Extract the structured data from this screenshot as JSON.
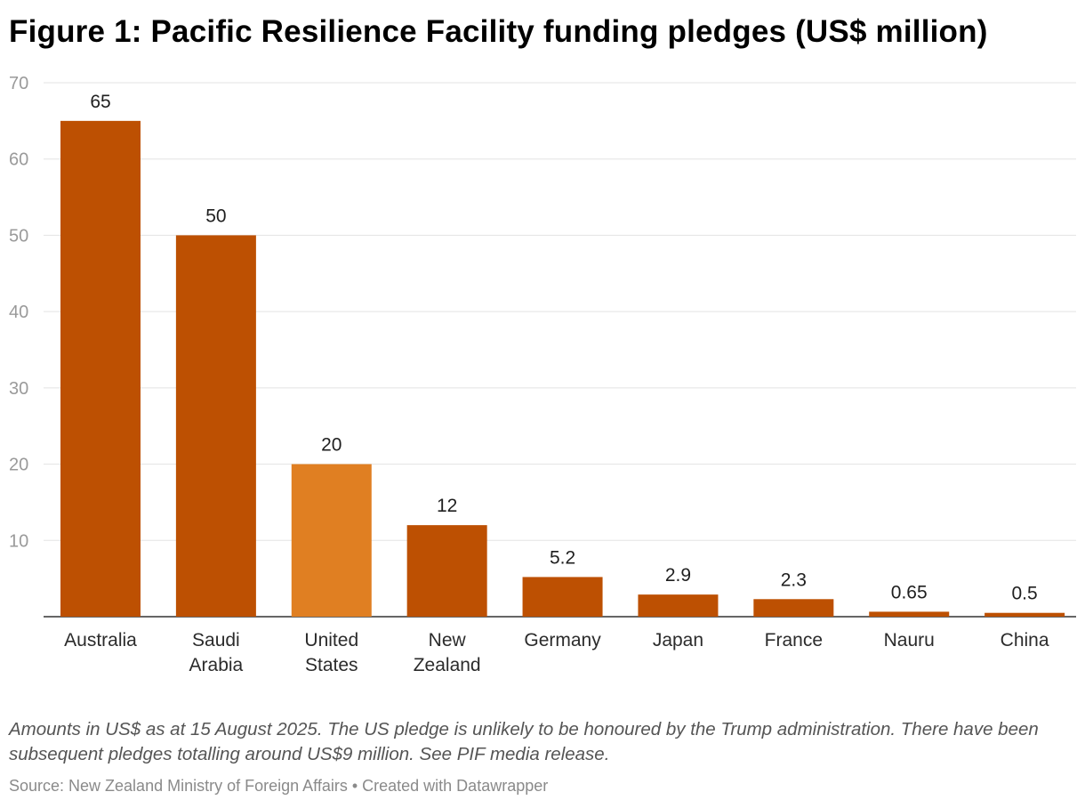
{
  "chart_data": {
    "type": "bar",
    "title": "Figure 1: Pacific Resilience Facility funding pledges (US$ million)",
    "categories": [
      "Australia",
      "Saudi Arabia",
      "United States",
      "New Zealand",
      "Germany",
      "Japan",
      "France",
      "Nauru",
      "China"
    ],
    "category_lines": [
      [
        "Australia"
      ],
      [
        "Saudi",
        "Arabia"
      ],
      [
        "United",
        "States"
      ],
      [
        "New",
        "Zealand"
      ],
      [
        "Germany"
      ],
      [
        "Japan"
      ],
      [
        "France"
      ],
      [
        "Nauru"
      ],
      [
        "China"
      ]
    ],
    "values": [
      65,
      50,
      20,
      12,
      5.2,
      2.9,
      2.3,
      0.65,
      0.5
    ],
    "value_labels": [
      "65",
      "50",
      "20",
      "12",
      "5.2",
      "2.9",
      "2.3",
      "0.65",
      "0.5"
    ],
    "highlight_index": 2,
    "colors": {
      "bar": "#bd5002",
      "highlight": "#e07f22"
    },
    "ylim": [
      0,
      70
    ],
    "yticks": [
      10,
      20,
      30,
      40,
      50,
      60,
      70
    ],
    "xlabel": "",
    "ylabel": "",
    "grid": true
  },
  "notes": "Amounts in US$ as at 15 August 2025. The US pledge is unlikely to be honoured by the Trump administration. There have been subsequent pledges totalling around US$9 million. See PIF media release.",
  "source": "Source: New Zealand Ministry of Foreign Affairs • Created with Datawrapper"
}
